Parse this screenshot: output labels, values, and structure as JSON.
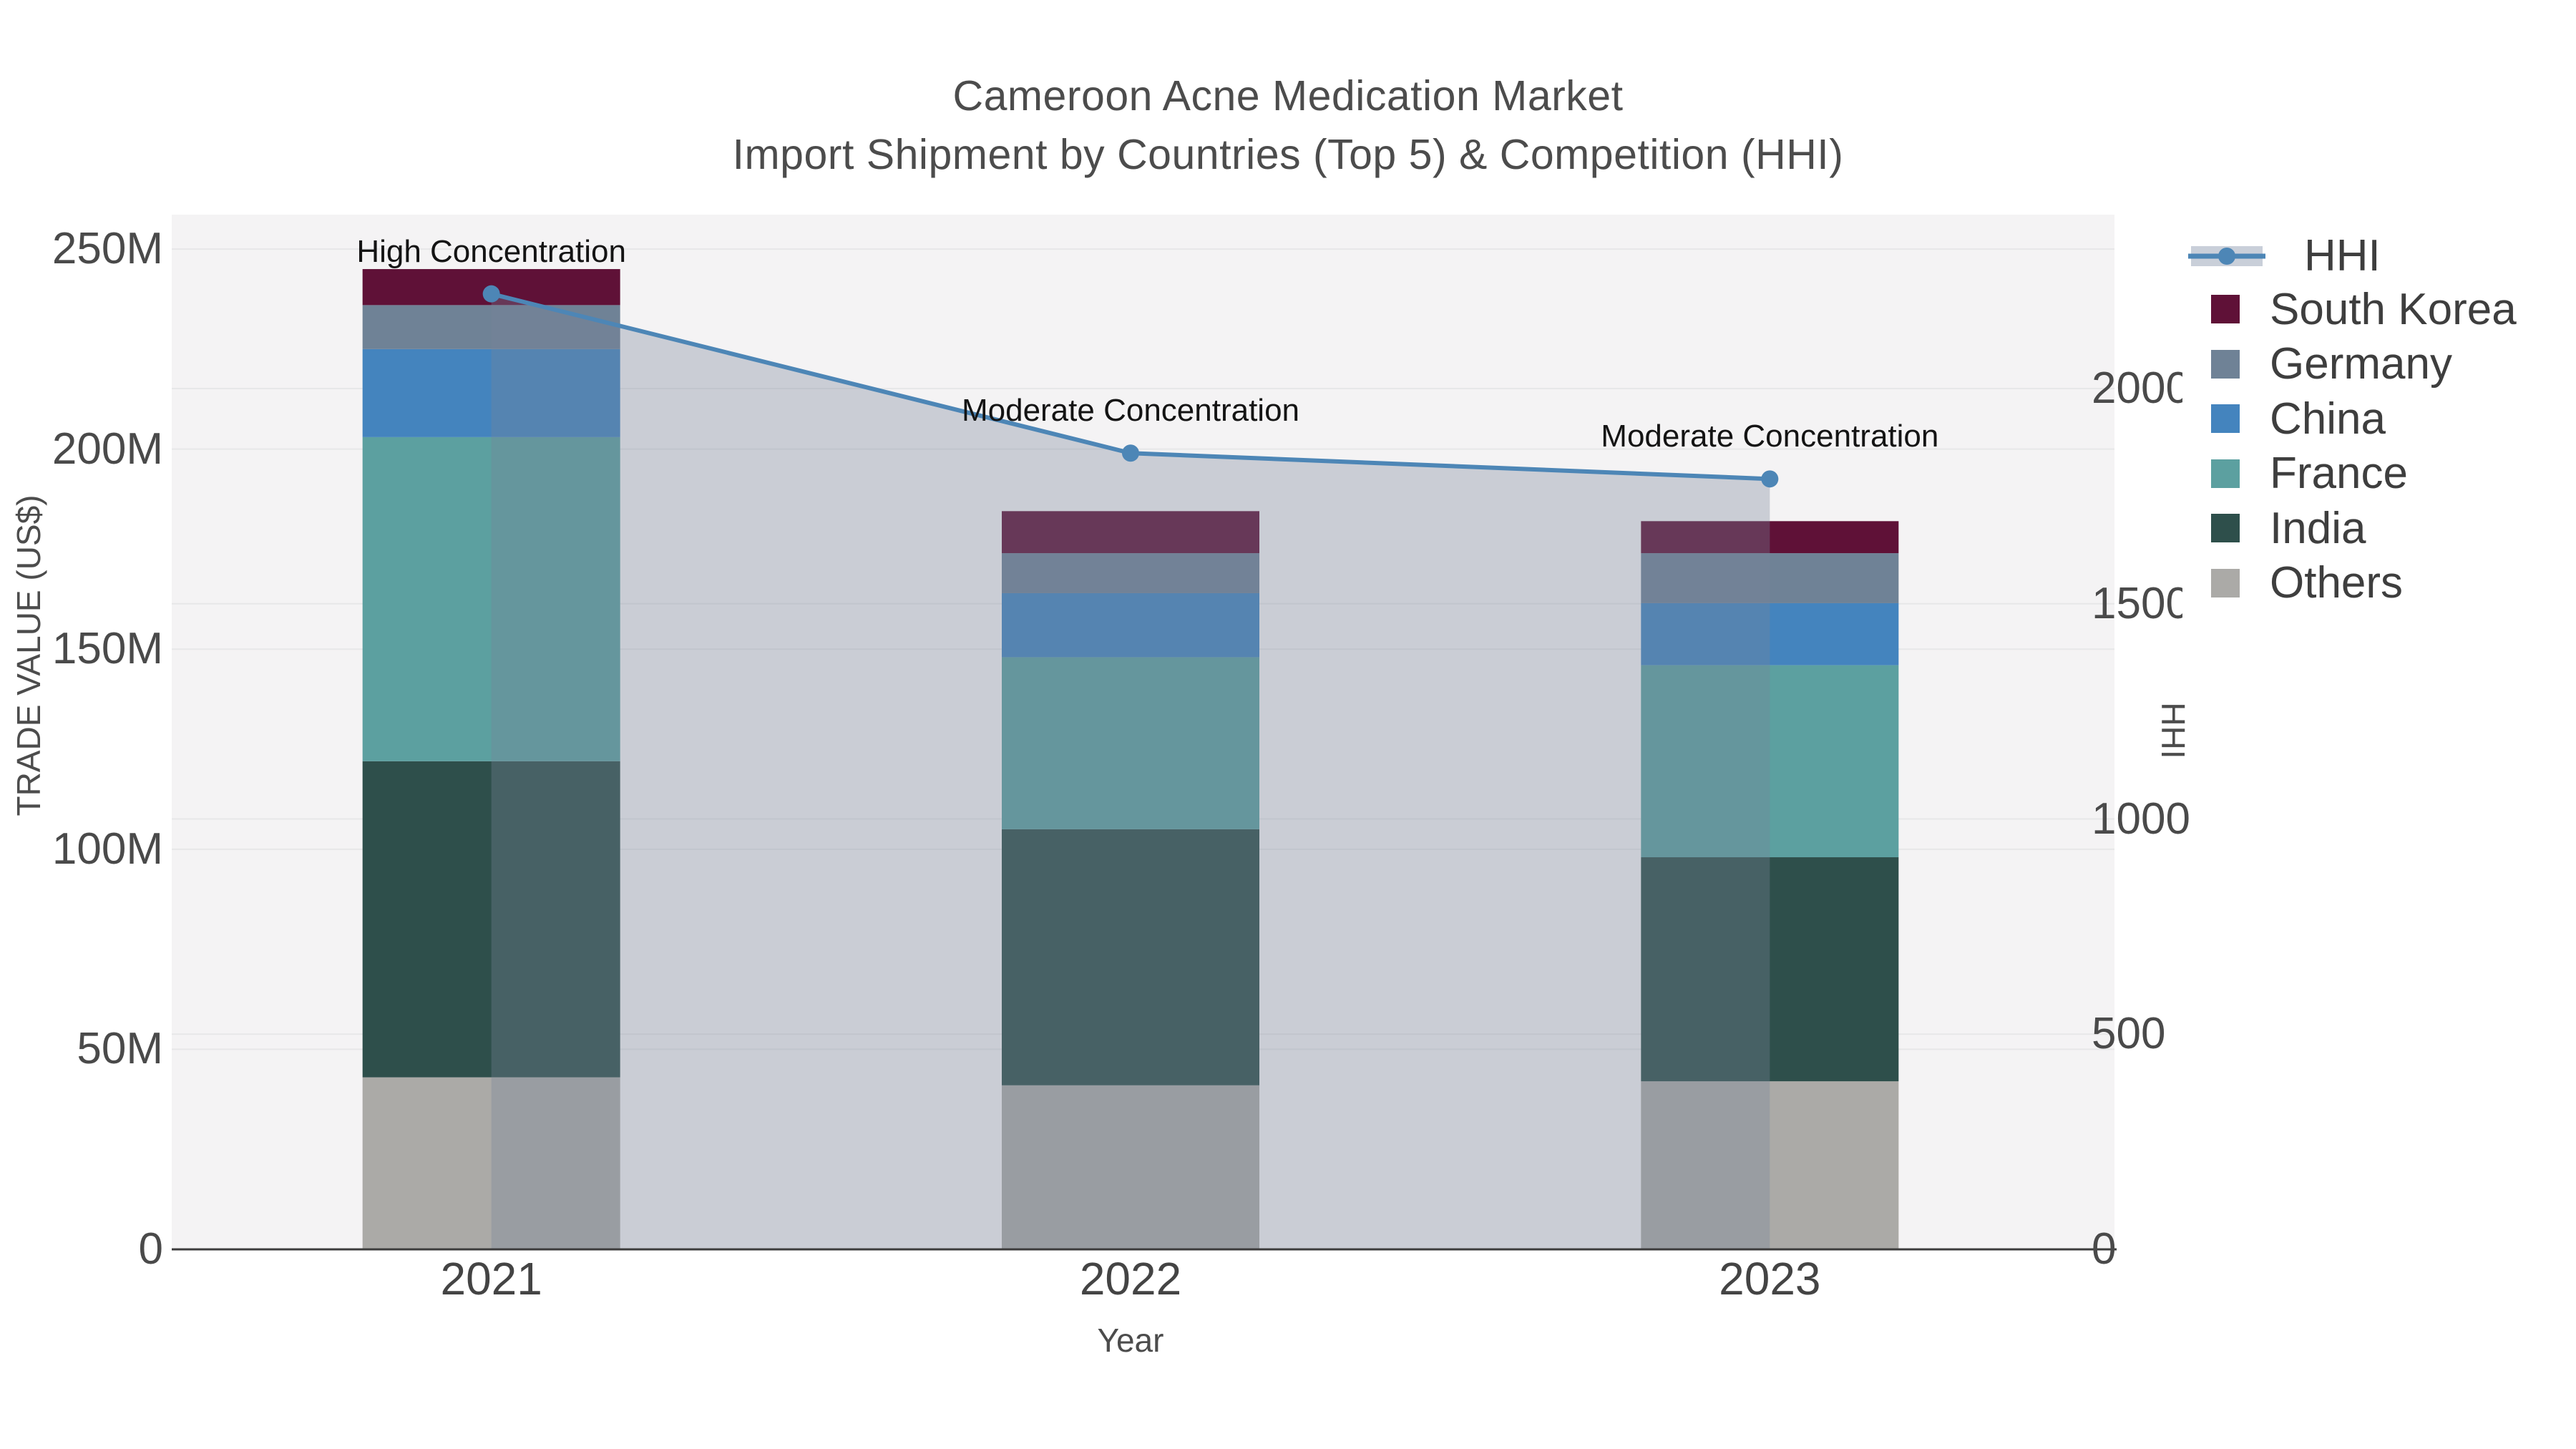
{
  "title": {
    "line1": "Cameroon Acne Medication Market",
    "line2": "Import Shipment by Countries (Top 5) & Competition (HHI)"
  },
  "chart_data": {
    "type": "bar+line",
    "description": "Stacked import trade value bars (US$ millions, left axis) by origin country with HHI competition index line (right axis)",
    "categories": [
      "2021",
      "2022",
      "2023"
    ],
    "series": [
      {
        "name": "Others",
        "color": "#ABAAA7",
        "values": [
          43,
          41,
          42
        ]
      },
      {
        "name": "India",
        "color": "#2E4F4B",
        "values": [
          79,
          64,
          56
        ]
      },
      {
        "name": "France",
        "color": "#5CA0A0",
        "values": [
          81,
          43,
          48
        ]
      },
      {
        "name": "China",
        "color": "#4484BE",
        "values": [
          22,
          16,
          15.5
        ]
      },
      {
        "name": "Germany",
        "color": "#6F8296",
        "values": [
          11,
          10,
          12.5
        ]
      },
      {
        "name": "South Korea",
        "color": "#5F1137",
        "values": [
          9,
          10.5,
          8
        ]
      }
    ],
    "bar_totals_musd": [
      245,
      184.5,
      182
    ],
    "hhi": {
      "name": "HHI",
      "values": [
        2220,
        1850,
        1790
      ],
      "line_color": "#4D86B6",
      "fill_color": "rgba(121,132,153,0.34)"
    },
    "annotations": [
      {
        "year": "2021",
        "text": "High Concentration"
      },
      {
        "year": "2022",
        "text": "Moderate Concentration"
      },
      {
        "year": "2023",
        "text": "Moderate Concentration"
      }
    ],
    "y_left": {
      "title": "TRADE VALUE (US$)",
      "tick_labels": [
        "0",
        "50M",
        "100M",
        "150M",
        "200M",
        "250M"
      ],
      "tick_values": [
        0,
        50,
        100,
        150,
        200,
        250
      ],
      "axis_max": 258.6
    },
    "y_right": {
      "title": "HHI",
      "tick_labels": [
        "0",
        "500",
        "1000",
        "1500",
        "2000"
      ],
      "tick_values": [
        0,
        500,
        1000,
        1500,
        2000
      ],
      "axis_max": 2404
    },
    "x": {
      "title": "Year"
    },
    "legend": [
      {
        "label": "HHI",
        "type": "line"
      },
      {
        "label": "South Korea",
        "type": "swatch",
        "color": "#5F1137"
      },
      {
        "label": "Germany",
        "type": "swatch",
        "color": "#6F8296"
      },
      {
        "label": "China",
        "type": "swatch",
        "color": "#4484BE"
      },
      {
        "label": "France",
        "type": "swatch",
        "color": "#5CA0A0"
      },
      {
        "label": "India",
        "type": "swatch",
        "color": "#2E4F4B"
      },
      {
        "label": "Others",
        "type": "swatch",
        "color": "#ABAAA7"
      }
    ]
  },
  "colors": {
    "plot_bg": "#F4F3F4",
    "grid": "#E7E7E8",
    "axis_line": "#3C3C3C",
    "legend_sample_band": "#C9CFD9"
  }
}
